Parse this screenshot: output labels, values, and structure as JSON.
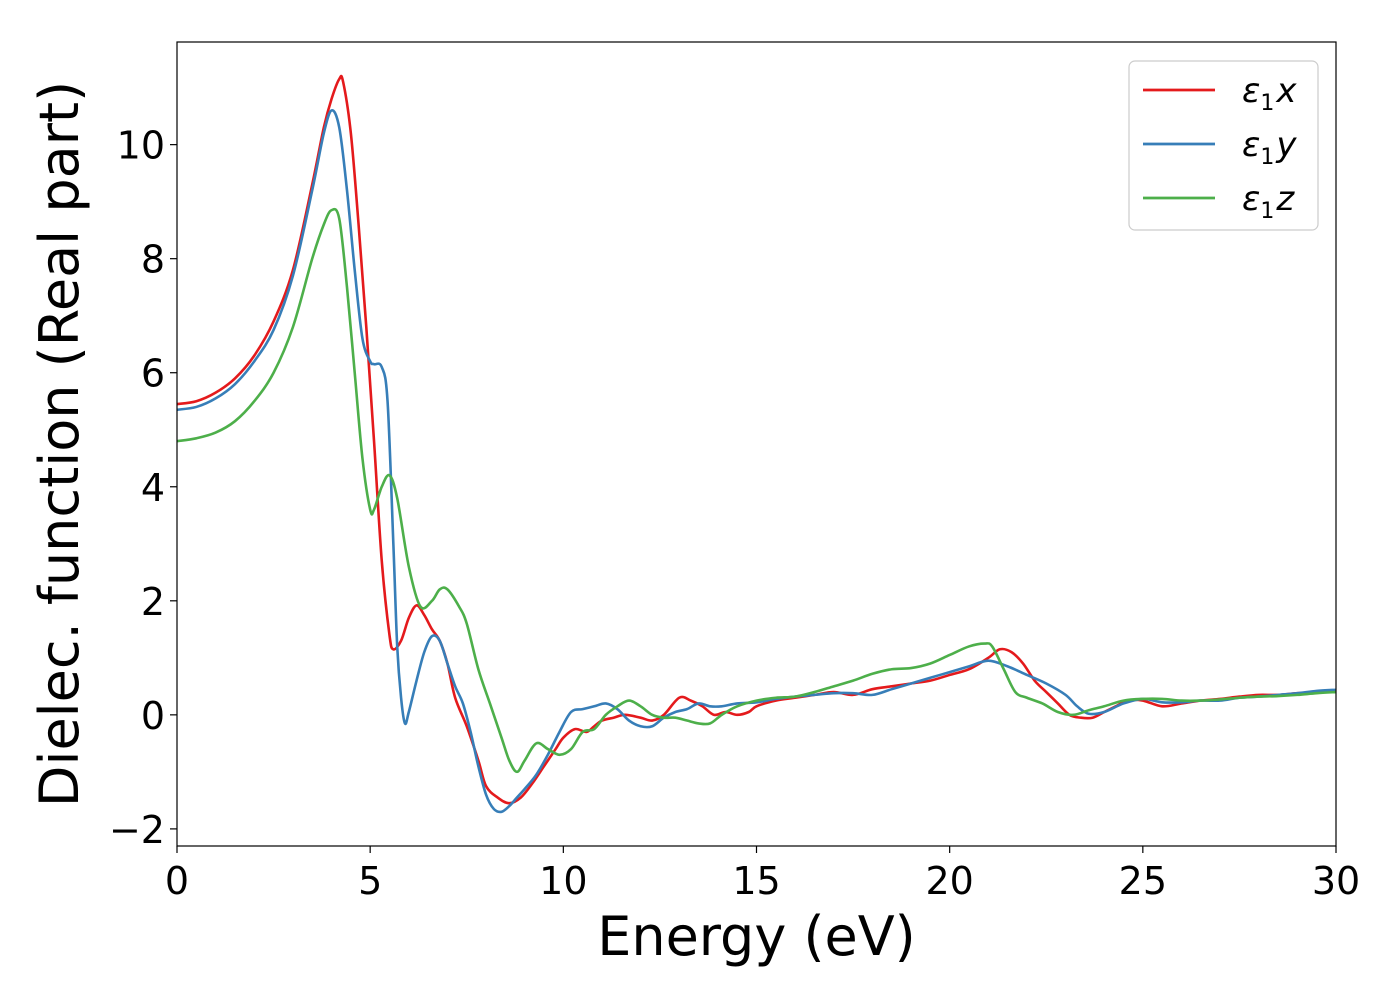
{
  "chart_data": {
    "type": "line",
    "xlabel": "Energy (eV)",
    "ylabel": "Dielec. function (Real part)",
    "xlim": [
      0,
      30
    ],
    "ylim": [
      -2.3,
      11.8
    ],
    "xticks": [
      0,
      5,
      10,
      15,
      20,
      25,
      30
    ],
    "yticks": [
      -2,
      0,
      2,
      4,
      6,
      8,
      10
    ],
    "xtick_labels": [
      "0",
      "5",
      "10",
      "15",
      "20",
      "25",
      "30"
    ],
    "ytick_labels": [
      "−2",
      "0",
      "2",
      "4",
      "6",
      "8",
      "10"
    ],
    "grid": false,
    "legend_position": "top-right",
    "series": [
      {
        "name": "ε₁x",
        "legend": {
          "symbol": "ε",
          "sub": "1",
          "suffix": "x"
        },
        "color": "#e41a1c",
        "x": [
          0,
          0.5,
          1.0,
          1.5,
          2.0,
          2.5,
          3.0,
          3.5,
          3.8,
          4.0,
          4.2,
          4.3,
          4.5,
          4.7,
          4.9,
          5.1,
          5.3,
          5.5,
          5.6,
          5.8,
          6.0,
          6.2,
          6.4,
          6.6,
          6.8,
          7.0,
          7.2,
          7.5,
          7.8,
          8.0,
          8.3,
          8.6,
          8.9,
          9.2,
          9.5,
          9.8,
          10.0,
          10.3,
          10.6,
          10.8,
          11.0,
          11.3,
          11.6,
          12.0,
          12.3,
          12.6,
          13.0,
          13.3,
          13.6,
          13.9,
          14.2,
          14.5,
          14.8,
          15.0,
          15.5,
          16.0,
          16.5,
          17.0,
          17.5,
          18.0,
          18.5,
          19.0,
          19.5,
          20.0,
          20.5,
          21.0,
          21.3,
          21.6,
          21.9,
          22.2,
          22.5,
          22.8,
          23.1,
          23.4,
          23.7,
          24.0,
          24.3,
          24.6,
          25.0,
          25.5,
          26.0,
          26.5,
          27.0,
          27.5,
          28.0,
          28.5,
          29.0,
          29.5,
          30.0
        ],
        "y": [
          5.45,
          5.5,
          5.65,
          5.9,
          6.3,
          6.9,
          7.8,
          9.3,
          10.3,
          10.8,
          11.15,
          11.1,
          10.2,
          8.6,
          6.8,
          4.8,
          2.7,
          1.4,
          1.15,
          1.3,
          1.7,
          1.92,
          1.75,
          1.5,
          1.3,
          0.9,
          0.3,
          -0.2,
          -0.8,
          -1.25,
          -1.45,
          -1.55,
          -1.45,
          -1.2,
          -0.9,
          -0.6,
          -0.4,
          -0.25,
          -0.3,
          -0.2,
          -0.1,
          -0.05,
          0.0,
          -0.05,
          -0.1,
          0.0,
          0.3,
          0.25,
          0.15,
          0.0,
          0.05,
          0.0,
          0.05,
          0.15,
          0.25,
          0.3,
          0.35,
          0.4,
          0.35,
          0.45,
          0.5,
          0.55,
          0.6,
          0.7,
          0.8,
          1.0,
          1.15,
          1.1,
          0.9,
          0.6,
          0.4,
          0.2,
          0.0,
          -0.05,
          -0.05,
          0.05,
          0.15,
          0.25,
          0.25,
          0.15,
          0.2,
          0.25,
          0.28,
          0.32,
          0.35,
          0.35,
          0.38,
          0.4,
          0.42
        ]
      },
      {
        "name": "ε₁y",
        "legend": {
          "symbol": "ε",
          "sub": "1",
          "suffix": "y"
        },
        "color": "#377eb8",
        "x": [
          0,
          0.5,
          1.0,
          1.5,
          2.0,
          2.5,
          3.0,
          3.5,
          3.8,
          4.0,
          4.2,
          4.4,
          4.6,
          4.8,
          5.0,
          5.1,
          5.3,
          5.45,
          5.6,
          5.7,
          5.8,
          5.9,
          6.0,
          6.2,
          6.4,
          6.6,
          6.8,
          7.0,
          7.2,
          7.4,
          7.6,
          7.8,
          8.0,
          8.2,
          8.4,
          8.6,
          8.8,
          9.0,
          9.3,
          9.6,
          9.9,
          10.2,
          10.5,
          10.8,
          11.1,
          11.4,
          11.7,
          12.0,
          12.3,
          12.6,
          12.9,
          13.2,
          13.5,
          13.8,
          14.1,
          14.5,
          15.0,
          15.5,
          16.0,
          16.5,
          17.0,
          17.5,
          18.0,
          18.5,
          19.0,
          19.5,
          20.0,
          20.5,
          21.0,
          21.5,
          22.0,
          22.5,
          23.0,
          23.3,
          23.6,
          24.0,
          24.5,
          25.0,
          25.5,
          26.0,
          26.5,
          27.0,
          27.5,
          28.0,
          28.5,
          29.0,
          29.5,
          30.0
        ],
        "y": [
          5.35,
          5.4,
          5.55,
          5.8,
          6.2,
          6.75,
          7.7,
          9.2,
          10.2,
          10.6,
          10.3,
          9.2,
          7.8,
          6.6,
          6.2,
          6.15,
          6.1,
          5.5,
          3.0,
          1.2,
          0.3,
          -0.15,
          0.05,
          0.6,
          1.1,
          1.38,
          1.3,
          0.9,
          0.5,
          0.2,
          -0.3,
          -0.9,
          -1.4,
          -1.65,
          -1.7,
          -1.6,
          -1.45,
          -1.3,
          -1.05,
          -0.7,
          -0.3,
          0.05,
          0.1,
          0.15,
          0.2,
          0.1,
          -0.1,
          -0.2,
          -0.2,
          -0.05,
          0.05,
          0.1,
          0.2,
          0.15,
          0.15,
          0.2,
          0.22,
          0.28,
          0.32,
          0.35,
          0.38,
          0.38,
          0.35,
          0.45,
          0.55,
          0.65,
          0.75,
          0.85,
          0.95,
          0.85,
          0.7,
          0.55,
          0.35,
          0.15,
          0.02,
          0.05,
          0.2,
          0.28,
          0.22,
          0.22,
          0.25,
          0.25,
          0.3,
          0.32,
          0.35,
          0.38,
          0.42,
          0.44
        ]
      },
      {
        "name": "ε₁z",
        "legend": {
          "symbol": "ε",
          "sub": "1",
          "suffix": "z"
        },
        "color": "#4daf4a",
        "x": [
          0,
          0.5,
          1.0,
          1.5,
          2.0,
          2.5,
          3.0,
          3.5,
          3.8,
          4.0,
          4.2,
          4.4,
          4.6,
          4.8,
          5.0,
          5.1,
          5.3,
          5.5,
          5.7,
          6.0,
          6.3,
          6.6,
          6.8,
          7.0,
          7.3,
          7.5,
          7.8,
          8.1,
          8.4,
          8.6,
          8.8,
          9.0,
          9.3,
          9.6,
          9.9,
          10.2,
          10.5,
          10.8,
          11.1,
          11.4,
          11.7,
          12.0,
          12.3,
          12.6,
          12.9,
          13.2,
          13.5,
          13.8,
          14.1,
          14.5,
          15.0,
          15.5,
          16.0,
          16.5,
          17.0,
          17.5,
          18.0,
          18.5,
          19.0,
          19.5,
          20.0,
          20.5,
          20.9,
          21.1,
          21.4,
          21.7,
          22.0,
          22.4,
          22.8,
          23.2,
          23.6,
          24.0,
          24.5,
          25.0,
          25.5,
          26.0,
          26.5,
          27.0,
          27.5,
          28.0,
          28.5,
          29.0,
          29.5,
          30.0
        ],
        "y": [
          4.8,
          4.85,
          4.95,
          5.15,
          5.5,
          6.0,
          6.8,
          8.0,
          8.6,
          8.85,
          8.7,
          7.5,
          6.0,
          4.5,
          3.6,
          3.6,
          4.0,
          4.2,
          3.8,
          2.6,
          1.9,
          2.0,
          2.2,
          2.2,
          1.9,
          1.6,
          0.8,
          0.2,
          -0.4,
          -0.8,
          -1.0,
          -0.8,
          -0.5,
          -0.6,
          -0.7,
          -0.6,
          -0.3,
          -0.25,
          0.0,
          0.15,
          0.25,
          0.15,
          0.0,
          -0.05,
          -0.05,
          -0.1,
          -0.15,
          -0.15,
          0.0,
          0.15,
          0.25,
          0.3,
          0.32,
          0.4,
          0.5,
          0.6,
          0.72,
          0.8,
          0.82,
          0.9,
          1.05,
          1.2,
          1.25,
          1.2,
          0.8,
          0.4,
          0.3,
          0.2,
          0.05,
          0.0,
          0.08,
          0.15,
          0.25,
          0.28,
          0.28,
          0.25,
          0.25,
          0.27,
          0.3,
          0.32,
          0.33,
          0.35,
          0.38,
          0.4
        ]
      }
    ]
  }
}
